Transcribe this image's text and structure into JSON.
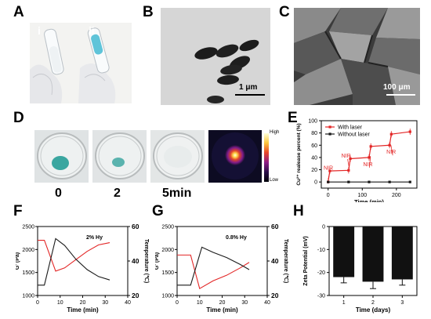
{
  "panels": {
    "A": {
      "label": "A",
      "sub_i": "i",
      "sub_ii": "ii"
    },
    "B": {
      "label": "B",
      "scalebar": "1 μm"
    },
    "C": {
      "label": "C",
      "scalebar": "100 μm"
    },
    "D": {
      "label": "D",
      "times": [
        "0",
        "2",
        "5min"
      ],
      "colorbar_high": "High",
      "colorbar_low": "Low"
    },
    "E": {
      "label": "E"
    },
    "F": {
      "label": "F"
    },
    "G": {
      "label": "G"
    },
    "H": {
      "label": "H"
    }
  },
  "colors": {
    "red": "#e32626",
    "black": "#1a1a1a",
    "gel_blue": "#3aa6a0",
    "bar": "#111111"
  },
  "chart_data": [
    {
      "id": "E",
      "type": "line",
      "xlabel": "Time (min)",
      "ylabel": "Cu²⁺ realease percent (%)",
      "xlim": [
        -20,
        260
      ],
      "ylim": [
        -10,
        100
      ],
      "xticks": [
        0,
        100,
        200
      ],
      "yticks": [
        0,
        20,
        40,
        60,
        80,
        100
      ],
      "legend_position": "top-left",
      "annotations": [
        "NIR",
        "NIR",
        "NIR",
        "NIR"
      ],
      "series": [
        {
          "name": "With laser",
          "color": "#e32626",
          "marker": "square",
          "x": [
            0,
            5,
            60,
            65,
            120,
            125,
            180,
            185,
            240
          ],
          "y": [
            0,
            18,
            19,
            38,
            40,
            58,
            60,
            78,
            82
          ]
        },
        {
          "name": "Without laser",
          "color": "#1a1a1a",
          "marker": "square",
          "x": [
            0,
            60,
            120,
            180,
            240
          ],
          "y": [
            0,
            0,
            0,
            0,
            0
          ]
        }
      ]
    },
    {
      "id": "F",
      "type": "line",
      "annotation": "2% Hy",
      "xlabel": "Time (min)",
      "ylabel_left": "G' (Pa)",
      "ylabel_right": "Temperature (℃)",
      "xlim": [
        0,
        40
      ],
      "xticks": [
        0,
        10,
        20,
        30,
        40
      ],
      "ylim_left": [
        1000,
        2500
      ],
      "yticks_left": [
        1000,
        1500,
        2000,
        2500
      ],
      "ylim_right": [
        20,
        60
      ],
      "yticks_right": [
        20,
        40,
        60
      ],
      "series": [
        {
          "axis": "left",
          "color": "#e32626",
          "x": [
            0,
            3,
            8,
            12,
            17,
            22,
            27,
            32
          ],
          "y": [
            2200,
            2200,
            1530,
            1600,
            1780,
            1960,
            2100,
            2150
          ]
        },
        {
          "axis": "right",
          "color": "#1a1a1a",
          "x": [
            0,
            3,
            8,
            12,
            17,
            22,
            27,
            32
          ],
          "y": [
            26,
            26,
            53,
            49,
            41,
            35,
            31,
            29
          ]
        }
      ]
    },
    {
      "id": "G",
      "type": "line",
      "annotation": "0.8% Hy",
      "xlabel": "Time (min)",
      "ylabel_left": "G' (Pa)",
      "ylabel_right": "Temperature (℃)",
      "xlim": [
        0,
        40
      ],
      "xticks": [
        0,
        10,
        20,
        30,
        40
      ],
      "ylim_left": [
        1000,
        2500
      ],
      "yticks_left": [
        1000,
        1500,
        2000,
        2500
      ],
      "ylim_right": [
        20,
        60
      ],
      "yticks_right": [
        20,
        40,
        60
      ],
      "series": [
        {
          "axis": "left",
          "color": "#e32626",
          "x": [
            0,
            6,
            10,
            16,
            22,
            28,
            32
          ],
          "y": [
            1880,
            1880,
            1150,
            1320,
            1440,
            1600,
            1720
          ]
        },
        {
          "axis": "right",
          "color": "#1a1a1a",
          "x": [
            0,
            6,
            11,
            16,
            22,
            28,
            32
          ],
          "y": [
            26,
            26,
            48,
            45,
            42,
            38,
            35
          ]
        }
      ]
    },
    {
      "id": "H",
      "type": "bar",
      "xlabel": "Time (days)",
      "ylabel": "Zeta Potential (mV)",
      "categories": [
        "1",
        "2",
        "3"
      ],
      "values": [
        -22,
        -24,
        -23
      ],
      "errors": [
        2.5,
        3,
        2.5
      ],
      "ylim": [
        -30,
        0
      ],
      "yticks": [
        0,
        -10,
        -20,
        -30
      ]
    }
  ]
}
